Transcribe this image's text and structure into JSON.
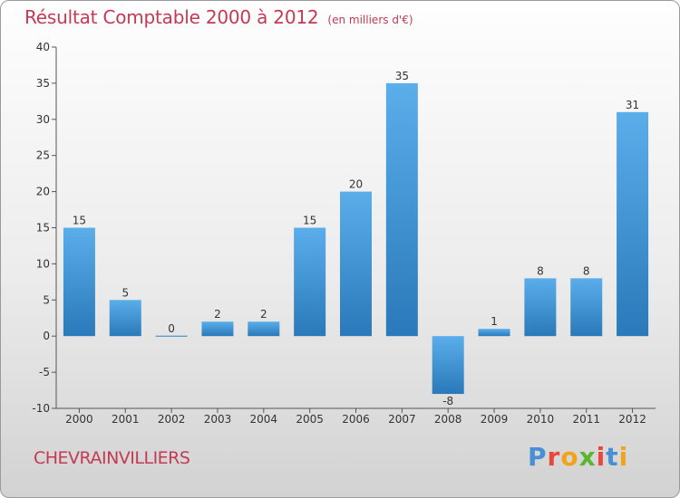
{
  "title": "Résultat Comptable 2000 à 2012",
  "subtitle": "(en milliers d'€)",
  "town": "CHEVRAINVILLIERS",
  "logo": {
    "text": "Proxiti",
    "letters": [
      "P",
      "r",
      "o",
      "x",
      "i",
      "t",
      "i"
    ],
    "colors": [
      "#4a8fd4",
      "#e8473f",
      "#f3a21b",
      "#5cb531",
      "#e8473f",
      "#4a8fd4",
      "#f3a21b"
    ]
  },
  "colors": {
    "bar_top": "#5aaeea",
    "bar_bottom": "#2a79ba",
    "title": "#c43a55"
  },
  "chart_data": {
    "type": "bar",
    "title": "Résultat Comptable 2000 à 2012",
    "subtitle": "(en milliers d'€)",
    "categories": [
      "2000",
      "2001",
      "2002",
      "2003",
      "2004",
      "2005",
      "2006",
      "2007",
      "2008",
      "2009",
      "2010",
      "2011",
      "2012"
    ],
    "values": [
      15,
      5,
      0,
      2,
      2,
      15,
      20,
      35,
      -8,
      1,
      8,
      8,
      31
    ],
    "labels": [
      "15",
      "5",
      "0",
      "2",
      "2",
      "15",
      "20",
      "35",
      "-8",
      "1",
      "8",
      "8",
      "31"
    ],
    "ylim": [
      -10,
      40
    ],
    "yticks": [
      -10,
      -5,
      0,
      5,
      10,
      15,
      20,
      25,
      30,
      35,
      40
    ],
    "grid": false,
    "xlabel": "",
    "ylabel": ""
  }
}
